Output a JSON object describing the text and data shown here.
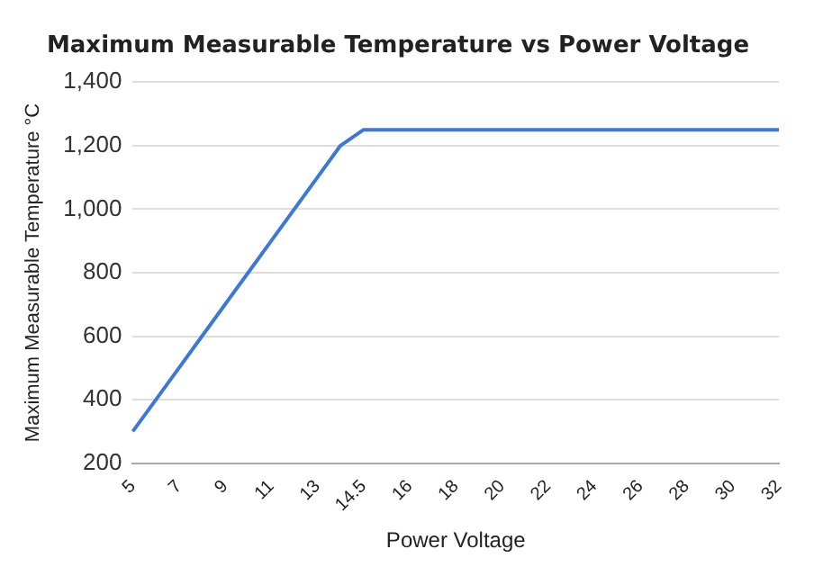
{
  "chart_data": {
    "type": "line",
    "title": "Maximum Measurable Temperature vs Power Voltage",
    "xlabel": "Power Voltage",
    "ylabel": "Maximum Measurable Temperature °C",
    "categories": [
      "5",
      null,
      "7",
      null,
      "9",
      null,
      "11",
      null,
      "13",
      null,
      "14.5",
      null,
      "16",
      null,
      "18",
      null,
      "20",
      null,
      "22",
      null,
      "24",
      null,
      "26",
      null,
      "28",
      null,
      "30",
      null,
      "32"
    ],
    "series": [
      {
        "color": "#3c78d8",
        "values": [
          300,
          400,
          500,
          600,
          700,
          800,
          900,
          1000,
          1100,
          1200,
          1250,
          1250,
          1250,
          1250,
          1250,
          1250,
          1250,
          1250,
          1250,
          1250,
          1250,
          1250,
          1250,
          1250,
          1250,
          1250,
          1250,
          1250,
          1250
        ]
      }
    ],
    "ylim": [
      200,
      1400
    ],
    "yticks": [
      {
        "value": 200,
        "label": "200"
      },
      {
        "value": 400,
        "label": "400"
      },
      {
        "value": 600,
        "label": "600"
      },
      {
        "value": 800,
        "label": "800"
      },
      {
        "value": 1000,
        "label": "1,000"
      },
      {
        "value": 1200,
        "label": "1,200"
      },
      {
        "value": 1400,
        "label": "1,400"
      }
    ],
    "grid": "y",
    "legend": false,
    "marker": "none",
    "line_style": "solid"
  }
}
